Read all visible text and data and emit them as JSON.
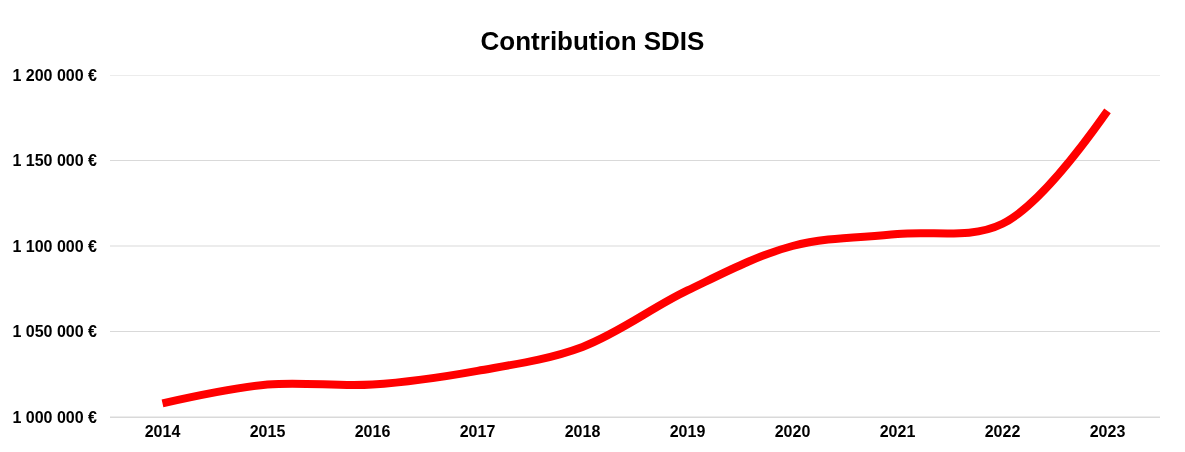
{
  "chart_data": {
    "type": "line",
    "title": "Contribution SDIS",
    "categories": [
      "2014",
      "2015",
      "2016",
      "2017",
      "2018",
      "2019",
      "2020",
      "2021",
      "2022",
      "2023"
    ],
    "series": [
      {
        "color": "#ff0000",
        "values": [
          1008000,
          1019000,
          1019000,
          1027000,
          1041000,
          1074000,
          1100000,
          1107000,
          1113000,
          1179000
        ]
      }
    ],
    "ylim": [
      1000000,
      1200000
    ],
    "yticks": [
      {
        "value": 1000000,
        "label": "1 000 000 €"
      },
      {
        "value": 1050000,
        "label": "1 050 000 €"
      },
      {
        "value": 1100000,
        "label": "1 100 000 €"
      },
      {
        "value": 1150000,
        "label": "1 150 000 €"
      },
      {
        "value": 1200000,
        "label": "1 200 000 €"
      }
    ],
    "grid": "y",
    "marker": "none",
    "line_style": "solid"
  }
}
